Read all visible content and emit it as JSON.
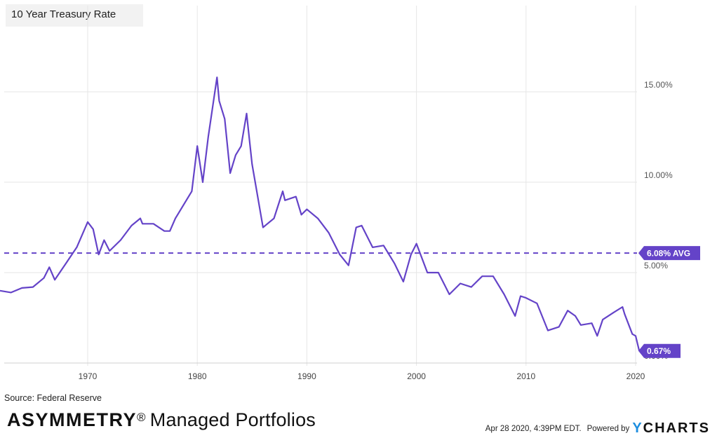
{
  "title": "10 Year Treasury Rate",
  "source": "Source: Federal Reserve",
  "brand": {
    "bold": "ASYMMETRY",
    "mark": "®",
    "rest": "Managed Portfolios"
  },
  "footer": {
    "date": "Apr 28 2020, 4:39PM EDT.",
    "powered": "Powered by",
    "logo_y": "Y",
    "logo_rest": "CHARTS"
  },
  "colors": {
    "line": "#6443c8",
    "grid": "#e6e6e6",
    "label_bg": "#6443c8"
  },
  "chart_data": {
    "type": "line",
    "title": "10 Year Treasury Rate",
    "xlabel": "",
    "ylabel": "",
    "xlim": [
      1962.0,
      2020.33
    ],
    "ylim": [
      0,
      20
    ],
    "x_ticks": [
      1970,
      1980,
      1990,
      2000,
      2010,
      2020
    ],
    "x_tick_labels": [
      "1970",
      "1980",
      "1990",
      "2000",
      "2010",
      "2020"
    ],
    "y_ticks": [
      0,
      5,
      10,
      15
    ],
    "y_tick_labels": [
      "0.00%",
      "5.00%",
      "10.00%",
      "15.00%"
    ],
    "grid": true,
    "average": {
      "value": 6.08,
      "label": "6.08% AVG"
    },
    "last": {
      "value": 0.67,
      "label": "0.67%"
    },
    "series": [
      {
        "name": "10 Year Treasury Rate",
        "points": [
          [
            1962.0,
            4.0
          ],
          [
            1963.0,
            3.9
          ],
          [
            1964.0,
            4.15
          ],
          [
            1965.0,
            4.2
          ],
          [
            1966.0,
            4.7
          ],
          [
            1966.5,
            5.3
          ],
          [
            1967.0,
            4.6
          ],
          [
            1968.0,
            5.5
          ],
          [
            1969.0,
            6.4
          ],
          [
            1970.0,
            7.8
          ],
          [
            1970.5,
            7.4
          ],
          [
            1971.0,
            6.0
          ],
          [
            1971.5,
            6.8
          ],
          [
            1972.0,
            6.2
          ],
          [
            1973.0,
            6.8
          ],
          [
            1974.0,
            7.6
          ],
          [
            1974.8,
            8.0
          ],
          [
            1975.0,
            7.7
          ],
          [
            1976.0,
            7.7
          ],
          [
            1977.0,
            7.3
          ],
          [
            1977.5,
            7.3
          ],
          [
            1978.0,
            8.0
          ],
          [
            1979.0,
            9.0
          ],
          [
            1979.5,
            9.5
          ],
          [
            1980.0,
            12.0
          ],
          [
            1980.5,
            10.0
          ],
          [
            1981.0,
            12.5
          ],
          [
            1981.8,
            15.8
          ],
          [
            1982.0,
            14.5
          ],
          [
            1982.5,
            13.5
          ],
          [
            1983.0,
            10.5
          ],
          [
            1983.5,
            11.5
          ],
          [
            1984.0,
            12.0
          ],
          [
            1984.5,
            13.8
          ],
          [
            1985.0,
            11.0
          ],
          [
            1986.0,
            7.5
          ],
          [
            1987.0,
            8.0
          ],
          [
            1987.8,
            9.5
          ],
          [
            1988.0,
            9.0
          ],
          [
            1989.0,
            9.2
          ],
          [
            1989.5,
            8.2
          ],
          [
            1990.0,
            8.5
          ],
          [
            1991.0,
            8.0
          ],
          [
            1992.0,
            7.2
          ],
          [
            1993.0,
            6.0
          ],
          [
            1993.8,
            5.4
          ],
          [
            1994.5,
            7.5
          ],
          [
            1995.0,
            7.6
          ],
          [
            1996.0,
            6.4
          ],
          [
            1997.0,
            6.5
          ],
          [
            1998.0,
            5.5
          ],
          [
            1998.8,
            4.5
          ],
          [
            1999.5,
            6.0
          ],
          [
            2000.0,
            6.6
          ],
          [
            2001.0,
            5.0
          ],
          [
            2002.0,
            5.0
          ],
          [
            2003.0,
            3.8
          ],
          [
            2004.0,
            4.4
          ],
          [
            2005.0,
            4.2
          ],
          [
            2006.0,
            4.8
          ],
          [
            2007.0,
            4.8
          ],
          [
            2008.0,
            3.8
          ],
          [
            2009.0,
            2.6
          ],
          [
            2009.5,
            3.7
          ],
          [
            2010.0,
            3.6
          ],
          [
            2011.0,
            3.3
          ],
          [
            2012.0,
            1.8
          ],
          [
            2013.0,
            2.0
          ],
          [
            2013.8,
            2.9
          ],
          [
            2014.5,
            2.6
          ],
          [
            2015.0,
            2.1
          ],
          [
            2016.0,
            2.2
          ],
          [
            2016.5,
            1.5
          ],
          [
            2017.0,
            2.4
          ],
          [
            2018.0,
            2.8
          ],
          [
            2018.8,
            3.1
          ],
          [
            2019.0,
            2.7
          ],
          [
            2019.7,
            1.6
          ],
          [
            2020.0,
            1.5
          ],
          [
            2020.33,
            0.67
          ]
        ]
      }
    ]
  }
}
